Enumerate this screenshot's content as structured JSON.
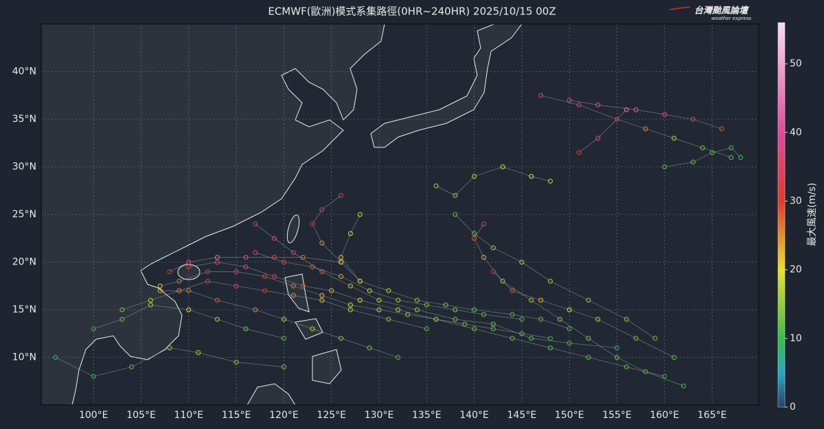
{
  "map": {
    "title": "ECMWF(歐洲)模式系集路徑(0HR~240HR) 2025/10/15 00Z",
    "logo": {
      "name": "台灣颱風論壇",
      "subtitle": "weather express"
    },
    "xlim": [
      94.5,
      169.9
    ],
    "ylim": [
      5,
      45
    ],
    "xticks": [
      {
        "value": 100,
        "label": "100°E"
      },
      {
        "value": 105,
        "label": "105°E"
      },
      {
        "value": 110,
        "label": "110°E"
      },
      {
        "value": 115,
        "label": "115°E"
      },
      {
        "value": 120,
        "label": "120°E"
      },
      {
        "value": 125,
        "label": "125°E"
      },
      {
        "value": 130,
        "label": "130°E"
      },
      {
        "value": 135,
        "label": "135°E"
      },
      {
        "value": 140,
        "label": "140°E"
      },
      {
        "value": 145,
        "label": "145°E"
      },
      {
        "value": 150,
        "label": "150°E"
      },
      {
        "value": 155,
        "label": "155°E"
      },
      {
        "value": 160,
        "label": "160°E"
      },
      {
        "value": 165,
        "label": "165°E"
      }
    ],
    "yticks": [
      {
        "value": 10,
        "label": "10°N"
      },
      {
        "value": 15,
        "label": "15°N"
      },
      {
        "value": 20,
        "label": "20°N"
      },
      {
        "value": 25,
        "label": "25°N"
      },
      {
        "value": 30,
        "label": "30°N"
      },
      {
        "value": 35,
        "label": "35°N"
      },
      {
        "value": 40,
        "label": "40°N"
      }
    ],
    "grid": true,
    "colorbar": {
      "label": "最大風速(m/s)",
      "lim": [
        0,
        56
      ],
      "ticks": [
        0,
        10,
        20,
        30,
        40,
        50
      ],
      "colormap": [
        {
          "value": 0,
          "color": "#2b3f6b"
        },
        {
          "value": 5,
          "color": "#2aa8c4"
        },
        {
          "value": 10,
          "color": "#3dbb4a"
        },
        {
          "value": 20,
          "color": "#e8e030"
        },
        {
          "value": 30,
          "color": "#e03a2e"
        },
        {
          "value": 40,
          "color": "#e04a9a"
        },
        {
          "value": 56,
          "color": "#f6dcf0"
        }
      ]
    },
    "tracks": [
      {
        "points": [
          [
            148,
            12,
            10
          ],
          [
            145,
            12.5,
            12
          ],
          [
            142,
            13,
            13
          ],
          [
            139,
            13.5,
            14
          ],
          [
            136,
            14,
            15
          ],
          [
            133,
            14.5,
            17
          ],
          [
            130,
            15,
            18
          ],
          [
            127,
            15.5,
            20
          ],
          [
            124,
            16.5,
            22
          ],
          [
            121,
            17.5,
            26
          ],
          [
            118,
            18.5,
            32
          ],
          [
            115,
            19,
            36
          ],
          [
            112,
            19,
            33
          ],
          [
            109,
            18,
            26
          ],
          [
            107,
            17.5,
            22
          ]
        ]
      },
      {
        "points": [
          [
            155,
            11,
            9
          ],
          [
            150,
            11.5,
            11
          ],
          [
            146,
            12,
            12
          ],
          [
            142,
            13.5,
            13
          ],
          [
            138,
            14,
            14
          ],
          [
            134,
            15,
            16
          ],
          [
            130,
            16,
            18
          ],
          [
            127,
            17.5,
            22
          ],
          [
            124,
            19,
            27
          ],
          [
            121,
            21,
            35
          ],
          [
            119,
            22.5,
            38
          ],
          [
            117,
            24,
            34
          ]
        ]
      },
      {
        "points": [
          [
            160,
            8,
            10
          ],
          [
            156,
            9,
            11
          ],
          [
            152,
            10,
            12
          ],
          [
            148,
            11,
            12
          ],
          [
            144,
            12,
            13
          ],
          [
            140,
            13,
            14
          ],
          [
            136,
            14,
            15
          ],
          [
            132,
            15,
            18
          ],
          [
            128,
            16,
            20
          ],
          [
            125,
            17,
            22
          ],
          [
            122,
            17.5,
            28
          ],
          [
            119,
            18.5,
            35
          ],
          [
            116,
            19.5,
            40
          ],
          [
            113,
            20,
            37
          ],
          [
            110,
            19.5,
            30
          ]
        ]
      },
      {
        "points": [
          [
            162,
            7,
            11
          ],
          [
            158,
            8.5,
            12
          ],
          [
            155,
            10,
            13
          ],
          [
            152,
            12,
            14
          ],
          [
            149,
            14,
            15
          ],
          [
            146,
            16,
            16
          ],
          [
            143,
            18,
            17
          ],
          [
            141,
            20.5,
            22
          ],
          [
            140,
            22.5,
            28
          ],
          [
            141,
            24,
            32
          ]
        ]
      },
      {
        "points": [
          [
            135,
            13,
            12
          ],
          [
            131,
            14,
            15
          ],
          [
            127,
            15,
            18
          ],
          [
            124,
            16,
            21
          ],
          [
            121,
            16.5,
            24
          ],
          [
            118,
            17,
            30
          ],
          [
            115,
            17.5,
            34
          ],
          [
            112,
            18,
            32
          ],
          [
            109,
            17,
            25
          ],
          [
            106,
            16,
            18
          ],
          [
            103,
            15,
            13
          ]
        ]
      },
      {
        "points": [
          [
            128,
            18,
            15
          ],
          [
            126,
            20,
            18
          ],
          [
            124,
            22,
            24
          ],
          [
            123,
            24,
            30
          ],
          [
            124,
            25.5,
            34
          ],
          [
            126,
            27,
            33
          ]
        ]
      },
      {
        "points": [
          [
            150,
            37,
            38
          ],
          [
            153,
            36.5,
            40
          ],
          [
            157,
            36,
            42
          ],
          [
            160,
            35.5,
            40
          ],
          [
            163,
            35,
            36
          ],
          [
            166,
            34,
            28
          ]
        ]
      },
      {
        "points": [
          [
            147,
            37.5,
            38
          ],
          [
            151,
            36.5,
            35
          ],
          [
            155,
            35,
            32
          ],
          [
            158,
            34,
            25
          ],
          [
            161,
            33,
            18
          ],
          [
            164,
            32,
            14
          ],
          [
            167,
            31,
            12
          ]
        ]
      },
      {
        "points": [
          [
            160,
            30,
            12
          ],
          [
            163,
            30.5,
            13
          ],
          [
            165,
            31.5,
            12
          ],
          [
            167,
            32,
            11
          ],
          [
            168,
            31,
            10
          ]
        ]
      },
      {
        "points": [
          [
            136,
            28,
            16
          ],
          [
            138,
            27,
            17
          ],
          [
            140,
            29,
            18
          ],
          [
            143,
            30,
            19
          ],
          [
            146,
            29,
            20
          ],
          [
            148,
            28.5,
            18
          ]
        ]
      },
      {
        "points": [
          [
            138,
            25,
            12
          ],
          [
            140,
            23,
            14
          ],
          [
            142,
            21.5,
            16
          ],
          [
            145,
            20,
            17
          ],
          [
            148,
            18,
            16
          ],
          [
            152,
            16,
            15
          ],
          [
            156,
            14,
            14
          ],
          [
            159,
            12,
            13
          ]
        ]
      },
      {
        "points": [
          [
            120,
            9,
            14
          ],
          [
            115,
            9.5,
            16
          ],
          [
            111,
            10.5,
            18
          ],
          [
            108,
            11,
            15
          ],
          [
            104,
            9,
            12
          ],
          [
            100,
            8,
            10
          ],
          [
            96,
            10,
            9
          ]
        ]
      },
      {
        "points": [
          [
            132,
            10,
            11
          ],
          [
            129,
            11,
            13
          ],
          [
            126,
            12,
            15
          ],
          [
            123,
            13,
            18
          ],
          [
            120,
            14,
            21
          ],
          [
            117,
            15,
            25
          ],
          [
            113,
            16,
            28
          ],
          [
            110,
            17,
            26
          ],
          [
            107,
            17,
            22
          ]
        ]
      },
      {
        "points": [
          [
            126,
            20,
            20
          ],
          [
            122,
            20.5,
            26
          ],
          [
            119,
            20.5,
            33
          ],
          [
            116,
            20.5,
            41
          ],
          [
            113,
            20.5,
            44
          ],
          [
            110,
            20,
            38
          ],
          [
            108,
            19,
            30
          ]
        ]
      },
      {
        "points": [
          [
            142,
            19,
            30
          ],
          [
            144,
            17,
            28
          ],
          [
            147,
            16,
            22
          ],
          [
            150,
            15,
            20
          ],
          [
            153,
            14,
            18
          ],
          [
            157,
            12,
            14
          ],
          [
            161,
            10,
            12
          ]
        ]
      },
      {
        "points": [
          [
            145,
            14,
            12
          ],
          [
            141,
            14.5,
            13
          ],
          [
            138,
            15,
            14
          ],
          [
            135,
            15.5,
            14
          ],
          [
            132,
            16,
            16
          ],
          [
            129,
            17,
            19
          ],
          [
            126,
            18.5,
            23
          ],
          [
            123,
            19.5,
            28
          ],
          [
            120,
            20,
            34
          ],
          [
            117,
            21,
            37
          ]
        ]
      },
      {
        "points": [
          [
            150,
            13,
            11
          ],
          [
            147,
            14,
            12
          ],
          [
            144,
            14.5,
            12
          ],
          [
            140,
            15,
            13
          ],
          [
            137,
            15.5,
            14
          ],
          [
            134,
            16,
            15
          ],
          [
            131,
            17,
            18
          ],
          [
            128,
            18,
            20
          ],
          [
            126,
            20.5,
            22
          ],
          [
            127,
            23,
            20
          ],
          [
            128,
            25,
            18
          ]
        ]
      },
      {
        "points": [
          [
            156,
            36,
            44
          ],
          [
            153,
            33,
            40
          ],
          [
            151,
            31.5,
            30
          ]
        ]
      },
      {
        "points": [
          [
            120,
            12,
            12
          ],
          [
            116,
            13,
            14
          ],
          [
            113,
            14,
            17
          ],
          [
            110,
            15,
            20
          ],
          [
            106,
            15.5,
            17
          ],
          [
            103,
            14,
            12
          ],
          [
            100,
            13,
            10
          ]
        ]
      }
    ]
  }
}
